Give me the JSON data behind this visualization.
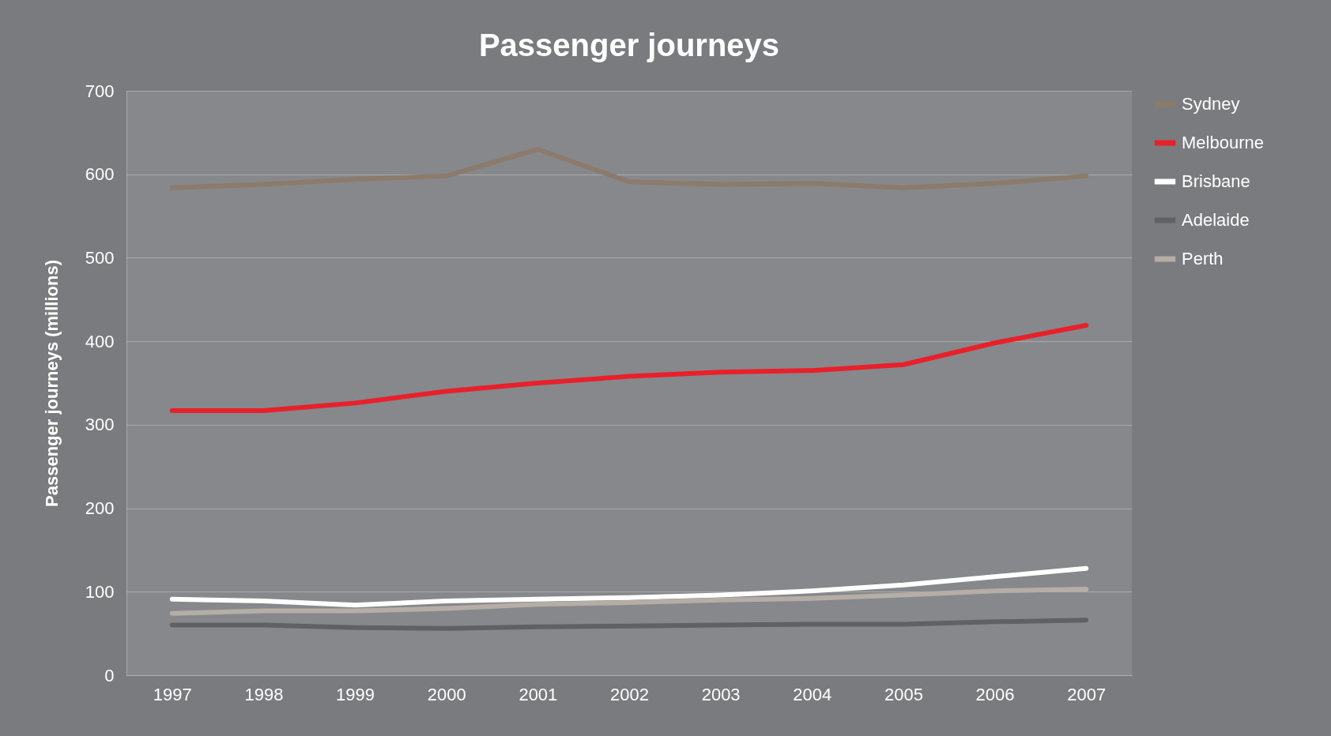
{
  "chart_data": {
    "type": "line",
    "title": "Passenger journeys",
    "ylabel": "Passenger journeys (millions)",
    "categories": [
      "1997",
      "1998",
      "1999",
      "2000",
      "2001",
      "2002",
      "2003",
      "2004",
      "2005",
      "2006",
      "2007"
    ],
    "series": [
      {
        "name": "Sydney",
        "color": "#8c7b6b",
        "values": [
          584,
          588,
          594,
          598,
          630,
          591,
          588,
          589,
          584,
          589,
          598
        ]
      },
      {
        "name": "Melbourne",
        "color": "#e8202a",
        "values": [
          317,
          317,
          326,
          340,
          350,
          358,
          363,
          365,
          372,
          398,
          419
        ]
      },
      {
        "name": "Brisbane",
        "color": "#ffffff",
        "values": [
          91,
          89,
          84,
          89,
          91,
          93,
          96,
          101,
          108,
          118,
          128
        ]
      },
      {
        "name": "Adelaide",
        "color": "#5f6165",
        "values": [
          60,
          60,
          57,
          56,
          58,
          59,
          60,
          61,
          61,
          64,
          66
        ]
      },
      {
        "name": "Perth",
        "color": "#b5aea6",
        "values": [
          74,
          77,
          77,
          80,
          85,
          87,
          90,
          92,
          96,
          101,
          103
        ]
      }
    ],
    "ylim": [
      0,
      700
    ],
    "yticks": [
      0,
      100,
      200,
      300,
      400,
      500,
      600,
      700
    ],
    "grid": "y",
    "legend": "right",
    "marker": "none",
    "line_style": "solid"
  }
}
